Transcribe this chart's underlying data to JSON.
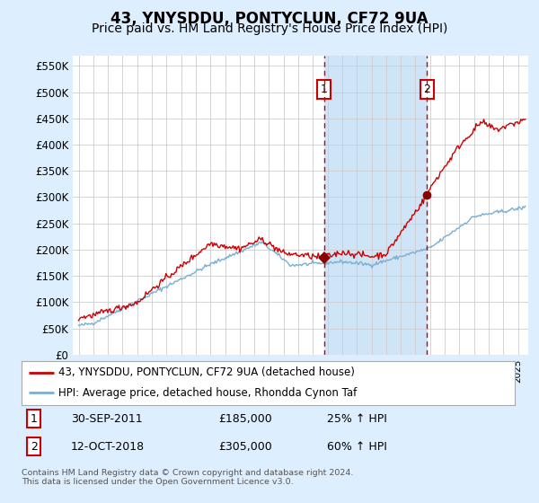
{
  "title": "43, YNYSDDU, PONTYCLUN, CF72 9UA",
  "subtitle": "Price paid vs. HM Land Registry's House Price Index (HPI)",
  "ylim": [
    0,
    570000
  ],
  "yticks": [
    0,
    50000,
    100000,
    150000,
    200000,
    250000,
    300000,
    350000,
    400000,
    450000,
    500000,
    550000
  ],
  "red_line_color": "#cc0000",
  "blue_line_color": "#7aaed4",
  "background_color": "#ddeeff",
  "plot_bg_color": "#ffffff",
  "grid_color": "#cccccc",
  "shade_color": "#d0e4f7",
  "marker1_date": 2011.75,
  "marker1_price": 185000,
  "marker1_label": "1",
  "marker1_date_str": "30-SEP-2011",
  "marker1_price_str": "£185,000",
  "marker1_hpi": "25% ↑ HPI",
  "marker2_date": 2018.79,
  "marker2_price": 305000,
  "marker2_label": "2",
  "marker2_date_str": "12-OCT-2018",
  "marker2_price_str": "£305,000",
  "marker2_hpi": "60% ↑ HPI",
  "legend1_label": "43, YNYSDDU, PONTYCLUN, CF72 9UA (detached house)",
  "legend2_label": "HPI: Average price, detached house, Rhondda Cynon Taf",
  "footer": "Contains HM Land Registry data © Crown copyright and database right 2024.\nThis data is licensed under the Open Government Licence v3.0.",
  "title_fontsize": 12,
  "subtitle_fontsize": 10
}
